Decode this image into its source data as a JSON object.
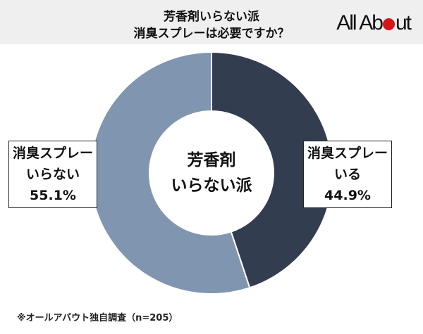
{
  "header": {
    "title_line1": "芳香剤いらない派",
    "title_line2": "消臭スプレーは必要ですか？",
    "logo": "All About"
  },
  "chart_data": {
    "type": "pie",
    "title": "芳香剤いらない派 消臭スプレーは必要ですか？",
    "center_label": [
      "芳香剤",
      "いらない派"
    ],
    "slices": [
      {
        "label_line1": "消臭スプレー",
        "label_line2": "いる",
        "value": 44.9,
        "value_label": "44.9%",
        "color": "#333d50"
      },
      {
        "label_line1": "消臭スプレー",
        "label_line2": "いらない",
        "value": 55.1,
        "value_label": "55.1%",
        "color": "#8095b0"
      }
    ]
  },
  "footnote": "※オールアバウト独自調査（n=205）"
}
